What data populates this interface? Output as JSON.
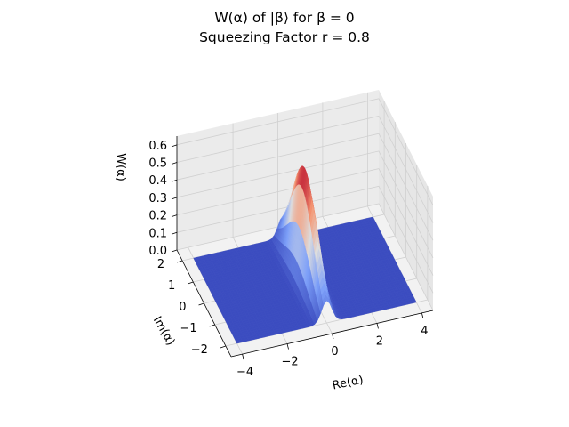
{
  "chart_data": {
    "type": "surface",
    "title": "W(α) of |β⟩ for β = 0",
    "subtitle": "Squeezing Factor r = 0.8",
    "xlabel": "Re(α)",
    "ylabel": "Im(α)",
    "zlabel": "W(α)",
    "xlim": [
      -4.5,
      4.5
    ],
    "ylim": [
      -2.5,
      2.5
    ],
    "zlim": [
      0,
      0.65
    ],
    "xticks": [
      "−4",
      "−2",
      "0",
      "2",
      "4"
    ],
    "yticks": [
      "−2",
      "−1",
      "0",
      "1",
      "2"
    ],
    "zticks": [
      "0.0",
      "0.1",
      "0.2",
      "0.3",
      "0.4",
      "0.5",
      "0.6"
    ],
    "grid": true,
    "colormap": "coolwarm",
    "surface": {
      "function": "squeezed vacuum Wigner function",
      "peak": 0.6366,
      "peak_at": [
        0,
        0
      ],
      "squeeze_r": 0.8,
      "beta": 0
    }
  }
}
